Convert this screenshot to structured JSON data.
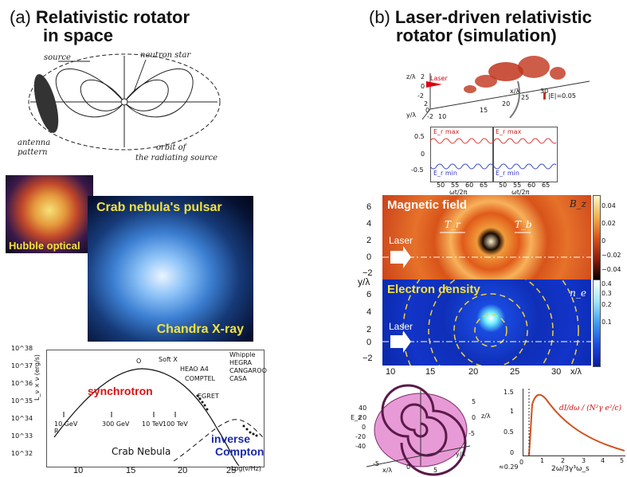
{
  "panel_a": {
    "letter": "(a)",
    "title_line1": "Relativistic rotator",
    "title_line2": "in space",
    "sketch": {
      "source": "source",
      "neutron_star": "neutron star",
      "antenna_pattern_1": "antenna",
      "antenna_pattern_2": "pattern",
      "orbit_1": "orbit of",
      "orbit_2": "the radiating source"
    },
    "hubble_label": "Hubble optical",
    "crab_label": "Crab nebula's pulsar",
    "chandra_label": "Chandra X-ray",
    "spectrum": {
      "ylabel": "L_ν × ν  (erg/s)",
      "xlabel": "Log(ν/Hz)",
      "y_ticks": [
        "10^38",
        "10^37",
        "10^36",
        "10^35",
        "10^34",
        "10^33",
        "10^32"
      ],
      "x_ticks": [
        "10",
        "15",
        "20",
        "25"
      ],
      "synchrotron": "synchrotron",
      "inverse_1": "inverse",
      "inverse_2": "Compton",
      "crab_nebula": "Crab Nebula",
      "soft_x": "Soft X",
      "o_label": "O",
      "r_label": "R",
      "heao": "HEAO A4",
      "comptel": "COMPTEL",
      "egret": "EGRET",
      "arrow_labels": [
        "10 GeV",
        "300 GeV",
        "10 TeV",
        "100 TeV"
      ],
      "legend": [
        "Whipple",
        "HEGRA",
        "CANGAROO",
        "CASA"
      ]
    }
  },
  "panel_b": {
    "letter": "(b)",
    "title_line1": "Laser-driven relativistic",
    "title_line2": "rotator (simulation)",
    "three_d": {
      "zlabel": "z/λ",
      "ylabel": "y/λ",
      "xlabel": "x/λ",
      "laser": "Laser",
      "e_label": "|E|=0.05",
      "z_ticks": [
        "2",
        "0",
        "-2"
      ],
      "x_ticks": [
        "10",
        "15",
        "20",
        "25",
        "30"
      ],
      "y_ticks": [
        "2",
        "0",
        "-2"
      ]
    },
    "oscillation": {
      "left_top": "E_r max",
      "left_bottom": "E_r min",
      "right_top": "E_r max",
      "right_bottom": "E_r min",
      "y_ticks": [
        "0.5",
        "0",
        "-0.5"
      ],
      "x_ticks": [
        "50",
        "55",
        "60",
        "65"
      ],
      "xlabel": "ωt/2π"
    },
    "maps": {
      "magnetic_title": "Magnetic field",
      "electron_title": "Electron density",
      "bz": "B_z",
      "ne": "n_e",
      "laser1": "Laser",
      "laser2": "Laser",
      "tr": "T_r",
      "tb": "T_b",
      "ylabel": "y/λ",
      "xlabel": "x/λ",
      "y_ticks_top": [
        "6",
        "4",
        "2",
        "0",
        "−2"
      ],
      "y_ticks_bottom": [
        "6",
        "4",
        "2",
        "0",
        "−2"
      ],
      "x_ticks": [
        "10",
        "15",
        "20",
        "25",
        "30"
      ],
      "cbar_top": [
        "0.04",
        "0.02",
        "0",
        "−0.02",
        "−0.04"
      ],
      "cbar_bottom": [
        "0.4",
        "0.3",
        "0.2",
        "0.1"
      ]
    },
    "spiral": {
      "ez": "E_z",
      "z_ticks": [
        "40",
        "20",
        "0",
        "-20",
        "-40"
      ],
      "right_ticks": [
        "5",
        "0",
        "-5"
      ],
      "right_label": "z/λ",
      "yl": "y/λ",
      "xl": "x/λ",
      "bottom_ticks": [
        "-5",
        "0",
        "5"
      ]
    },
    "curve": {
      "y_ticks": [
        "1.5",
        "1",
        "0.5",
        "0"
      ],
      "x_ticks": [
        "0",
        "1",
        "2",
        "3",
        "4",
        "5"
      ],
      "xlabel": "2ω/3γ³ω_s",
      "marker": "≈0.29",
      "formula": "dI/dω / (N²γ e²/c)"
    }
  }
}
